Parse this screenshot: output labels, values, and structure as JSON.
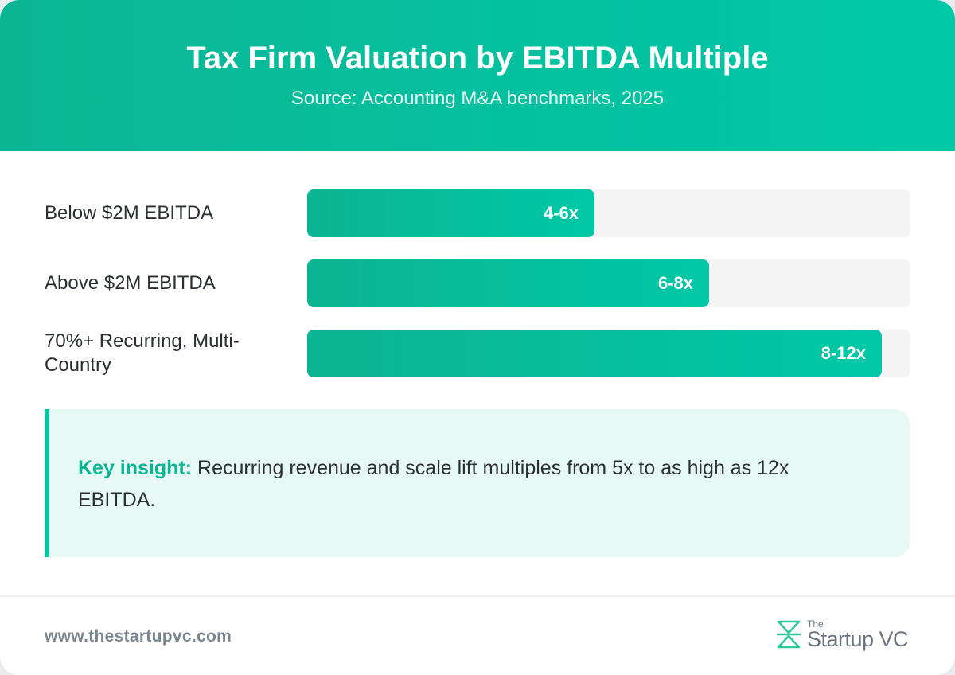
{
  "header": {
    "title": "Tax Firm Valuation by EBITDA Multiple",
    "subtitle": "Source: Accounting M&A benchmarks, 2025"
  },
  "chart_data": {
    "type": "bar",
    "orientation": "horizontal",
    "title": "Tax Firm Valuation by EBITDA Multiple",
    "subtitle": "Source: Accounting M&A benchmarks, 2025",
    "categories": [
      "Below $2M EBITDA",
      "Above $2M EBITDA",
      "70%+ Recurring, Multi-Country"
    ],
    "values": [
      5,
      7,
      10
    ],
    "value_labels": [
      "4-6x",
      "6-8x",
      "8-12x"
    ],
    "xlim": [
      0,
      10.5
    ],
    "grid": false,
    "colors": {
      "bar": "#00c4a2",
      "track": "#f4f4f5"
    }
  },
  "insight": {
    "label": "Key insight:",
    "text": " Recurring revenue and scale lift multiples from 5x to as high as 12x EBITDA."
  },
  "footer": {
    "url": "www.thestartupvc.com",
    "logo_the": "The",
    "logo_name": "Startup VC"
  },
  "colors": {
    "accent": "#00c4a2",
    "header_start": "#0bb695",
    "header_end": "#00c9a7",
    "insight_bg": "#e6f9f5"
  },
  "icons": {
    "logo": "startupvc-logo-icon"
  }
}
